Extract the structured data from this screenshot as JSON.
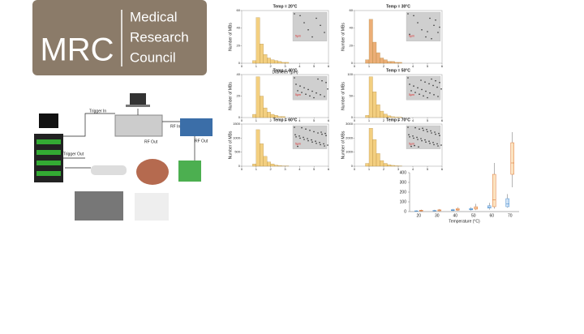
{
  "logo": {
    "short": "MRC",
    "lines": [
      "Medical",
      "Research",
      "Council"
    ]
  },
  "diagram": {
    "trigger_in": "Trigger In",
    "trigger_out": "Trigger Out",
    "rf_in": "RF In",
    "rf_out_1": "RF Out",
    "rf_out_2": "RF Out"
  },
  "inset_scale": "5μm",
  "chart_data": [
    {
      "type": "histogram",
      "title": "Temp = 20°C",
      "ylabel": "Number of MBs",
      "xlabel": "Diameter (μm)",
      "bins": [
        0.5,
        0.75,
        1,
        1.25,
        1.5,
        1.75,
        2,
        2.25,
        2.5,
        2.75,
        3,
        3.25
      ],
      "values": [
        0,
        3,
        52,
        22,
        10,
        6,
        4,
        3,
        2,
        1,
        1
      ],
      "color": "#f2c76b",
      "xlim": [
        0,
        6
      ],
      "xticks": [
        0,
        1,
        2,
        3,
        4,
        5,
        6
      ],
      "ylim": [
        0,
        60
      ],
      "yticks": [
        0,
        20,
        40,
        60
      ]
    },
    {
      "type": "histogram",
      "title": "Temp = 30°C",
      "ylabel": "Number of MBs",
      "bins": [
        0.5,
        0.75,
        1,
        1.25,
        1.5,
        1.75,
        2,
        2.25,
        2.5,
        2.75,
        3,
        3.25
      ],
      "values": [
        0,
        4,
        50,
        24,
        12,
        6,
        4,
        2,
        2,
        1,
        1
      ],
      "color": "#e9a060",
      "xlim": [
        0,
        6
      ],
      "xticks": [
        0,
        1,
        2,
        3,
        4,
        5,
        6
      ],
      "ylim": [
        0,
        60
      ],
      "yticks": [
        0,
        20,
        40,
        60
      ]
    },
    {
      "type": "histogram",
      "title": "Temp = 40°C",
      "ylabel": "Number of MBs",
      "bins": [
        0.5,
        0.75,
        1,
        1.25,
        1.5,
        1.75,
        2,
        2.25,
        2.5,
        2.75,
        3,
        3.25
      ],
      "values": [
        0,
        3,
        38,
        20,
        9,
        5,
        3,
        2,
        1,
        1,
        0
      ],
      "color": "#f2c76b",
      "xlim": [
        0,
        6
      ],
      "xticks": [
        0,
        1,
        2,
        3,
        4,
        5,
        6
      ],
      "ylim": [
        0,
        40
      ],
      "yticks": [
        0,
        20,
        40
      ]
    },
    {
      "type": "histogram",
      "title": "Temp = 50°C",
      "ylabel": "Number of MBs",
      "bins": [
        0.5,
        0.75,
        1,
        1.25,
        1.5,
        1.75,
        2,
        2.25,
        2.5,
        2.75,
        3,
        3.25
      ],
      "values": [
        0,
        5,
        95,
        60,
        30,
        15,
        8,
        4,
        2,
        1,
        1
      ],
      "color": "#f2c76b",
      "xlim": [
        0,
        6
      ],
      "xticks": [
        0,
        1,
        2,
        3,
        4,
        5,
        6
      ],
      "ylim": [
        0,
        100
      ],
      "yticks": [
        0,
        50,
        100
      ]
    },
    {
      "type": "histogram",
      "title": "Temp = 60°C",
      "ylabel": "Number of MBs",
      "bins": [
        0.5,
        0.75,
        1,
        1.25,
        1.5,
        1.75,
        2,
        2.25,
        2.5,
        2.75,
        3,
        3.25
      ],
      "values": [
        0,
        80,
        1300,
        800,
        350,
        150,
        80,
        40,
        20,
        10,
        5
      ],
      "color": "#f2c76b",
      "xlim": [
        0,
        6
      ],
      "xticks": [
        0,
        1,
        2,
        3,
        4,
        5,
        6
      ],
      "ylim": [
        0,
        1500
      ],
      "yticks": [
        0,
        500,
        1000,
        1500
      ]
    },
    {
      "type": "histogram",
      "title": "Temp = 70°C",
      "ylabel": "Number of MBs",
      "bins": [
        0.5,
        0.75,
        1,
        1.25,
        1.5,
        1.75,
        2,
        2.25,
        2.5,
        2.75,
        3,
        3.25
      ],
      "values": [
        0,
        200,
        2700,
        1900,
        900,
        400,
        200,
        100,
        60,
        30,
        10
      ],
      "color": "#f2c76b",
      "xlim": [
        0,
        6
      ],
      "xticks": [
        0,
        1,
        2,
        3,
        4,
        5,
        6
      ],
      "ylim": [
        0,
        3000
      ],
      "yticks": [
        0,
        1000,
        2000,
        3000
      ]
    },
    {
      "type": "box",
      "xlabel": "Temperature (°C)",
      "categories": [
        "20",
        "30",
        "40",
        "50",
        "60",
        "70"
      ],
      "ylim": [
        0,
        1400
      ],
      "yticks": [
        0,
        100,
        200,
        300,
        400
      ],
      "series": [
        {
          "color": "#4a8fd0",
          "min": [
            2,
            3,
            5,
            10,
            20,
            40
          ],
          "q1": [
            4,
            6,
            10,
            18,
            35,
            50
          ],
          "median": [
            6,
            8,
            14,
            24,
            45,
            80
          ],
          "q3": [
            8,
            12,
            20,
            32,
            60,
            133
          ],
          "max": [
            12,
            18,
            28,
            45,
            90,
            180
          ]
        },
        {
          "color": "#e07a3a",
          "min": [
            3,
            4,
            8,
            15,
            30,
            250
          ],
          "q1": [
            6,
            8,
            14,
            25,
            50,
            383
          ],
          "median": [
            9,
            12,
            20,
            35,
            120,
            500
          ],
          "q3": [
            14,
            18,
            30,
            50,
            383,
            708
          ],
          "max": [
            20,
            26,
            45,
            80,
            500,
            817
          ]
        }
      ]
    }
  ]
}
